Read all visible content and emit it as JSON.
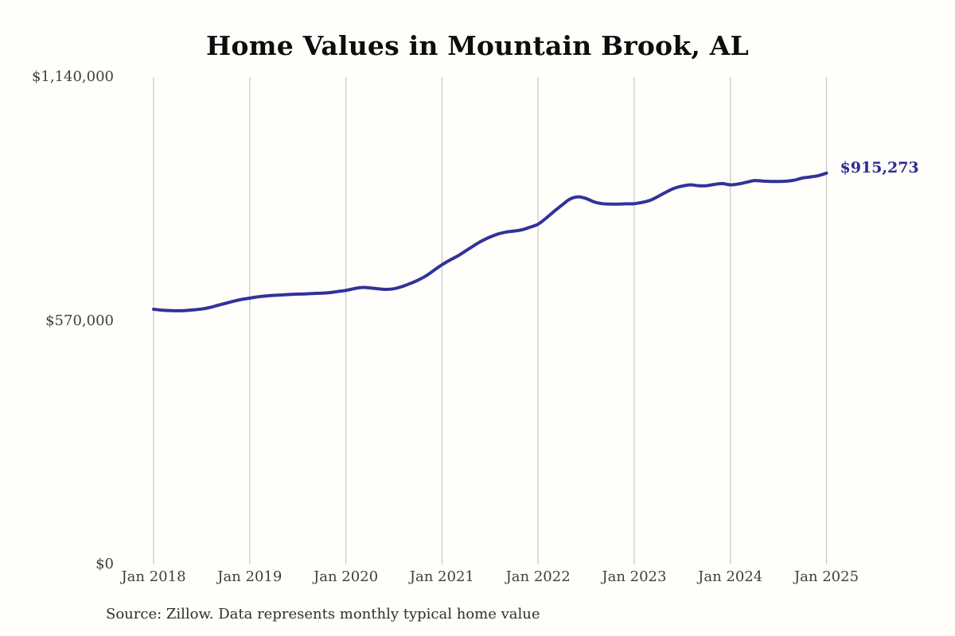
{
  "title": "Home Values in Mountain Brook, AL",
  "source_note": "Source: Zillow. Data represents monthly typical home value",
  "final_value_label": "$915,273",
  "colors": {
    "line": "#32329B",
    "grid": "#C9C9C9",
    "axis_text": "#3F3F3F",
    "title_text": "#0D0D0D",
    "end_label_text": "#2B2B91",
    "background": "#FFFEFA"
  },
  "chart_data": {
    "type": "line",
    "title": "Home Values in Mountain Brook, AL",
    "xlabel": "",
    "ylabel": "",
    "ylim": [
      0,
      1140000
    ],
    "grid": "vertical-only",
    "legend": "none",
    "y_ticks": [
      {
        "value": 0,
        "label": "$0"
      },
      {
        "value": 570000,
        "label": "$570,000"
      },
      {
        "value": 1140000,
        "label": "$1,140,000"
      }
    ],
    "x_tick_labels": [
      "Jan 2018",
      "Jan 2019",
      "Jan 2020",
      "Jan 2021",
      "Jan 2022",
      "Jan 2023",
      "Jan 2024",
      "Jan 2025"
    ],
    "x_tick_month_indices": [
      0,
      12,
      24,
      36,
      48,
      60,
      72,
      84
    ],
    "series": [
      {
        "name": "Monthly typical home value",
        "start_month": "2018-01",
        "end_month": "2025-01",
        "frequency": "monthly",
        "final_value": 915273,
        "values": [
          597000,
          595000,
          594000,
          593500,
          594000,
          595500,
          597500,
          601000,
          606000,
          611000,
          616000,
          620000,
          623000,
          626000,
          628000,
          629500,
          630500,
          631500,
          632500,
          633000,
          634000,
          634500,
          636000,
          638500,
          641000,
          645000,
          648000,
          647000,
          645000,
          643500,
          645000,
          650000,
          657000,
          665000,
          675000,
          688000,
          701000,
          712000,
          722000,
          734000,
          746000,
          757000,
          766000,
          773000,
          777500,
          780000,
          783000,
          789000,
          796000,
          810000,
          826000,
          841000,
          855000,
          860000,
          856000,
          848000,
          844000,
          843000,
          843000,
          843500,
          844000,
          847000,
          852000,
          861000,
          871000,
          880000,
          885000,
          888000,
          886000,
          886000,
          889000,
          891000,
          888000,
          890000,
          894000,
          898000,
          897000,
          896000,
          896000,
          896500,
          899000,
          904000,
          906500,
          909500,
          915273
        ]
      }
    ]
  }
}
